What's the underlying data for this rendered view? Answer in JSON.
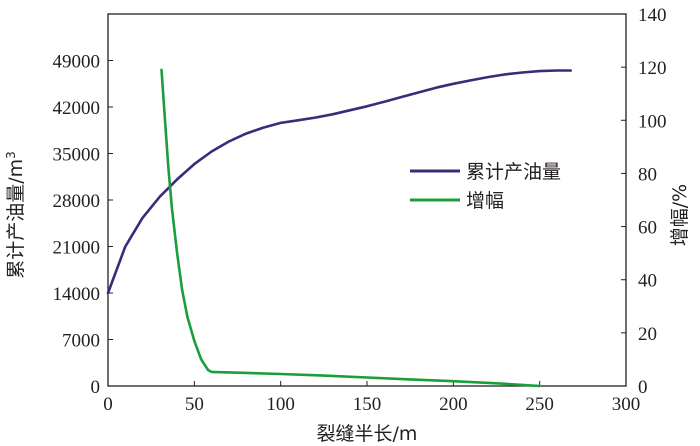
{
  "chart_data": {
    "type": "line",
    "xlabel": "裂缝半长/m",
    "ylabel_left": "累计产油量/m",
    "ylabel_left_sup": "3",
    "ylabel_right": "增幅/%",
    "xlim": [
      0,
      300
    ],
    "ylim_left": [
      0,
      56000
    ],
    "ylim_right": [
      0,
      140
    ],
    "x_ticks": [
      0,
      50,
      100,
      150,
      200,
      250,
      300
    ],
    "y_left_ticks": [
      0,
      7000,
      14000,
      21000,
      28000,
      35000,
      42000,
      49000
    ],
    "y_right_ticks": [
      0,
      20,
      40,
      60,
      80,
      100,
      120,
      140
    ],
    "legend_position": "center-right",
    "series": [
      {
        "name": "累计产油量",
        "axis": "left",
        "color": "#3d2a7a",
        "x": [
          0,
          10,
          20,
          30,
          40,
          50,
          60,
          70,
          80,
          90,
          100,
          110,
          120,
          130,
          140,
          150,
          160,
          170,
          180,
          190,
          200,
          210,
          220,
          230,
          240,
          250,
          260,
          268
        ],
        "y": [
          14000,
          21000,
          25300,
          28500,
          31100,
          33400,
          35300,
          36800,
          38000,
          38900,
          39600,
          40000,
          40400,
          40900,
          41500,
          42100,
          42800,
          43500,
          44200,
          44900,
          45500,
          46000,
          46500,
          46900,
          47200,
          47400,
          47500,
          47500
        ]
      },
      {
        "name": "增幅",
        "axis": "right",
        "color": "#1a9e3a",
        "x": [
          31,
          33,
          35,
          37,
          40,
          43,
          46,
          50,
          54,
          58,
          60,
          75,
          100,
          125,
          150,
          175,
          200,
          225,
          240,
          250
        ],
        "y": [
          119,
          100,
          82,
          67,
          50,
          36,
          26,
          17,
          10,
          6,
          5.3,
          5.0,
          4.5,
          3.9,
          3.2,
          2.5,
          1.8,
          1.0,
          0.4,
          0
        ]
      }
    ]
  }
}
